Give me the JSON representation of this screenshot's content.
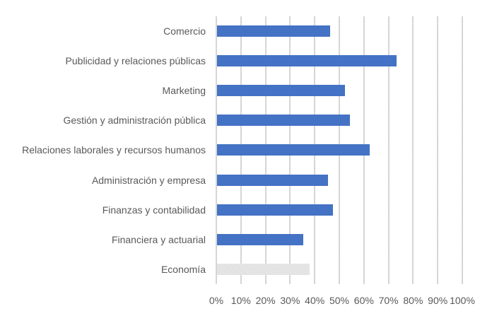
{
  "chart_data": {
    "type": "bar",
    "orientation": "horizontal",
    "title": "",
    "xlabel": "",
    "ylabel": "",
    "xlim": [
      0,
      100
    ],
    "grid": true,
    "legend": null,
    "categories": [
      "Comercio",
      "Publicidad y relaciones públicas",
      "Marketing",
      "Gestión y administración pública",
      "Relaciones laborales y recursos humanos",
      "Administración y empresa",
      "Finanzas y contabilidad",
      "Financiera y actuarial",
      "Economía"
    ],
    "values": [
      46,
      73,
      52,
      54,
      62,
      45,
      47,
      35,
      37.5
    ],
    "bar_colors": [
      "#4472C4",
      "#4472C4",
      "#4472C4",
      "#4472C4",
      "#4472C4",
      "#4472C4",
      "#4472C4",
      "#4472C4",
      "#E0E0E0"
    ],
    "highlight_note": "Economía bar rendered in light gray pattern",
    "x_ticks": [
      "0%",
      "10%",
      "20%",
      "30%",
      "40%",
      "50%",
      "60%",
      "70%",
      "80%",
      "90%",
      "100%"
    ]
  },
  "colors": {
    "primary_bar": "#4472C4",
    "highlight_bar": "#E0E0E0",
    "grid": "#D9D9D9",
    "text": "#595959"
  }
}
